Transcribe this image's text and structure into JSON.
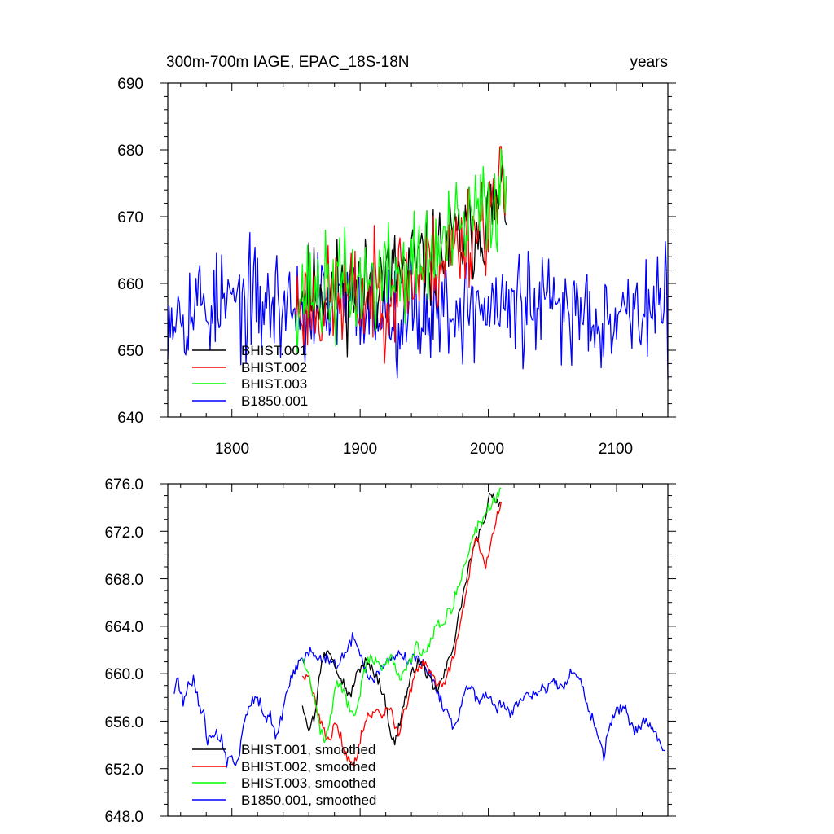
{
  "chart_data": [
    {
      "type": "line",
      "title": "300m-700m IAGE, EPAC_18S-18N",
      "right_title": "years",
      "xlim": [
        1750,
        2140
      ],
      "ylim": [
        640,
        690
      ],
      "xticks": [
        1800,
        1900,
        2000,
        2100
      ],
      "xtick_labels": [
        "1800",
        "1900",
        "2000",
        "2100"
      ],
      "yticks": [
        640,
        650,
        660,
        670,
        680,
        690
      ],
      "ytick_labels": [
        "640",
        "650",
        "660",
        "670",
        "680",
        "690"
      ],
      "legend_position": "bottom-left",
      "series": [
        {
          "name": "BHIST.001",
          "color": "#000000",
          "x_start": 1850,
          "x_end": 2014,
          "mean_start": 659,
          "mean_end": 673,
          "amp": 4.5,
          "seed": 11
        },
        {
          "name": "BHIST.002",
          "color": "#ff0000",
          "x_start": 1850,
          "x_end": 2014,
          "mean_start": 657,
          "mean_end": 674,
          "amp": 5.0,
          "seed": 23
        },
        {
          "name": "BHIST.003",
          "color": "#00ff00",
          "x_start": 1850,
          "x_end": 2014,
          "mean_start": 659,
          "mean_end": 675,
          "amp": 5.0,
          "seed": 37
        },
        {
          "name": "B1850.001",
          "color": "#0000ff",
          "x_start": 1750,
          "x_end": 2140,
          "mean_start": 657,
          "mean_end": 656,
          "amp": 5.0,
          "seed": 53
        }
      ]
    },
    {
      "type": "line",
      "title": "",
      "xlim": [
        1750,
        2140
      ],
      "ylim": [
        648,
        676
      ],
      "xticks": [
        1800,
        1900,
        2000,
        2100
      ],
      "yticks": [
        648,
        652,
        656,
        660,
        664,
        668,
        672,
        676
      ],
      "ytick_labels": [
        "648.0",
        "652.0",
        "656.0",
        "660.0",
        "664.0",
        "668.0",
        "672.0",
        "676.0"
      ],
      "legend_position": "bottom-left",
      "series": [
        {
          "name": "BHIST.001, smoothed",
          "color": "#000000",
          "points": [
            [
              1855,
              657.5
            ],
            [
              1860,
              655.5
            ],
            [
              1865,
              656.5
            ],
            [
              1868,
              660.0
            ],
            [
              1872,
              661.5
            ],
            [
              1876,
              662.0
            ],
            [
              1880,
              661.0
            ],
            [
              1884,
              660.0
            ],
            [
              1888,
              659.0
            ],
            [
              1892,
              658.0
            ],
            [
              1896,
              659.5
            ],
            [
              1900,
              660.5
            ],
            [
              1904,
              661.0
            ],
            [
              1908,
              660.5
            ],
            [
              1912,
              660.0
            ],
            [
              1916,
              659.0
            ],
            [
              1920,
              657.5
            ],
            [
              1924,
              655.0
            ],
            [
              1927,
              654.0
            ],
            [
              1930,
              655.5
            ],
            [
              1934,
              657.5
            ],
            [
              1938,
              659.0
            ],
            [
              1942,
              660.5
            ],
            [
              1946,
              661.0
            ],
            [
              1950,
              660.5
            ],
            [
              1954,
              659.5
            ],
            [
              1958,
              658.5
            ],
            [
              1962,
              659.0
            ],
            [
              1966,
              660.0
            ],
            [
              1970,
              661.5
            ],
            [
              1974,
              663.0
            ],
            [
              1978,
              665.5
            ],
            [
              1982,
              667.5
            ],
            [
              1986,
              669.5
            ],
            [
              1990,
              671.0
            ],
            [
              1994,
              672.0
            ],
            [
              1998,
              673.5
            ],
            [
              2002,
              675.5
            ],
            [
              2006,
              674.5
            ],
            [
              2009,
              674.5
            ]
          ]
        },
        {
          "name": "BHIST.002, smoothed",
          "color": "#ff0000",
          "points": [
            [
              1855,
              660.0
            ],
            [
              1860,
              659.5
            ],
            [
              1864,
              658.0
            ],
            [
              1868,
              656.5
            ],
            [
              1872,
              655.0
            ],
            [
              1876,
              654.5
            ],
            [
              1880,
              655.5
            ],
            [
              1884,
              655.0
            ],
            [
              1888,
              653.5
            ],
            [
              1892,
              652.5
            ],
            [
              1895,
              652.0
            ],
            [
              1898,
              653.5
            ],
            [
              1902,
              655.5
            ],
            [
              1906,
              656.5
            ],
            [
              1910,
              656.5
            ],
            [
              1914,
              657.0
            ],
            [
              1918,
              656.5
            ],
            [
              1922,
              657.5
            ],
            [
              1926,
              656.0
            ],
            [
              1930,
              655.0
            ],
            [
              1934,
              656.5
            ],
            [
              1938,
              658.0
            ],
            [
              1942,
              659.5
            ],
            [
              1946,
              660.5
            ],
            [
              1950,
              661.0
            ],
            [
              1954,
              660.0
            ],
            [
              1958,
              659.5
            ],
            [
              1962,
              659.0
            ],
            [
              1966,
              659.5
            ],
            [
              1970,
              660.5
            ],
            [
              1974,
              662.0
            ],
            [
              1978,
              664.0
            ],
            [
              1982,
              666.5
            ],
            [
              1986,
              669.0
            ],
            [
              1990,
              671.5
            ],
            [
              1994,
              670.5
            ],
            [
              1998,
              669.0
            ],
            [
              2002,
              671.0
            ],
            [
              2006,
              673.0
            ],
            [
              2010,
              674.5
            ]
          ]
        },
        {
          "name": "BHIST.003, smoothed",
          "color": "#00ff00",
          "points": [
            [
              1855,
              661.5
            ],
            [
              1860,
              660.0
            ],
            [
              1864,
              658.0
            ],
            [
              1868,
              655.5
            ],
            [
              1872,
              654.5
            ],
            [
              1876,
              655.5
            ],
            [
              1880,
              658.5
            ],
            [
              1884,
              659.5
            ],
            [
              1888,
              658.0
            ],
            [
              1892,
              657.0
            ],
            [
              1896,
              656.5
            ],
            [
              1900,
              658.5
            ],
            [
              1904,
              660.5
            ],
            [
              1908,
              661.5
            ],
            [
              1912,
              661.0
            ],
            [
              1916,
              660.5
            ],
            [
              1920,
              661.0
            ],
            [
              1924,
              661.5
            ],
            [
              1928,
              660.5
            ],
            [
              1932,
              659.5
            ],
            [
              1936,
              660.5
            ],
            [
              1940,
              661.0
            ],
            [
              1944,
              662.5
            ],
            [
              1948,
              661.5
            ],
            [
              1952,
              662.0
            ],
            [
              1956,
              663.0
            ],
            [
              1960,
              664.5
            ],
            [
              1964,
              664.0
            ],
            [
              1968,
              665.0
            ],
            [
              1972,
              665.5
            ],
            [
              1976,
              667.5
            ],
            [
              1980,
              668.5
            ],
            [
              1984,
              670.0
            ],
            [
              1988,
              671.5
            ],
            [
              1992,
              672.5
            ],
            [
              1996,
              673.0
            ],
            [
              2000,
              674.0
            ],
            [
              2004,
              674.5
            ],
            [
              2008,
              675.0
            ],
            [
              2010,
              675.6
            ]
          ]
        },
        {
          "name": "B1850.001, smoothed",
          "color": "#0000ff",
          "points": [
            [
              1755,
              658.5
            ],
            [
              1758,
              659.5
            ],
            [
              1762,
              657.5
            ],
            [
              1766,
              659.0
            ],
            [
              1770,
              659.5
            ],
            [
              1774,
              657.5
            ],
            [
              1778,
              656.5
            ],
            [
              1781,
              654.0
            ],
            [
              1784,
              655.0
            ],
            [
              1788,
              655.0
            ],
            [
              1792,
              654.5
            ],
            [
              1796,
              652.5
            ],
            [
              1800,
              653.5
            ],
            [
              1803,
              652.0
            ],
            [
              1806,
              653.5
            ],
            [
              1810,
              656.0
            ],
            [
              1814,
              657.5
            ],
            [
              1818,
              658.0
            ],
            [
              1822,
              657.5
            ],
            [
              1826,
              656.0
            ],
            [
              1830,
              656.5
            ],
            [
              1834,
              654.5
            ],
            [
              1838,
              656.0
            ],
            [
              1842,
              658.0
            ],
            [
              1846,
              659.5
            ],
            [
              1850,
              660.5
            ],
            [
              1854,
              661.0
            ],
            [
              1858,
              661.5
            ],
            [
              1862,
              662.0
            ],
            [
              1866,
              661.5
            ],
            [
              1870,
              661.0
            ],
            [
              1874,
              661.5
            ],
            [
              1878,
              661.0
            ],
            [
              1882,
              660.5
            ],
            [
              1886,
              661.5
            ],
            [
              1890,
              662.0
            ],
            [
              1894,
              663.0
            ],
            [
              1898,
              662.0
            ],
            [
              1902,
              661.0
            ],
            [
              1906,
              660.0
            ],
            [
              1910,
              659.5
            ],
            [
              1914,
              660.0
            ],
            [
              1918,
              660.5
            ],
            [
              1922,
              661.0
            ],
            [
              1926,
              661.5
            ],
            [
              1930,
              662.0
            ],
            [
              1934,
              661.5
            ],
            [
              1938,
              661.0
            ],
            [
              1942,
              661.5
            ],
            [
              1946,
              661.0
            ],
            [
              1950,
              661.0
            ],
            [
              1954,
              660.0
            ],
            [
              1958,
              659.0
            ],
            [
              1962,
              658.0
            ],
            [
              1966,
              657.0
            ],
            [
              1970,
              656.0
            ],
            [
              1974,
              655.5
            ],
            [
              1978,
              657.0
            ],
            [
              1982,
              658.5
            ],
            [
              1986,
              659.0
            ],
            [
              1990,
              658.0
            ],
            [
              1994,
              657.5
            ],
            [
              1998,
              658.5
            ],
            [
              2002,
              658.0
            ],
            [
              2006,
              657.0
            ],
            [
              2010,
              657.5
            ],
            [
              2014,
              657.0
            ],
            [
              2018,
              656.5
            ],
            [
              2022,
              657.5
            ],
            [
              2026,
              658.0
            ],
            [
              2030,
              658.5
            ],
            [
              2034,
              658.0
            ],
            [
              2038,
              658.5
            ],
            [
              2042,
              659.0
            ],
            [
              2046,
              658.5
            ],
            [
              2050,
              659.5
            ],
            [
              2054,
              659.0
            ],
            [
              2058,
              658.5
            ],
            [
              2062,
              659.5
            ],
            [
              2066,
              660.5
            ],
            [
              2070,
              660.0
            ],
            [
              2074,
              658.5
            ],
            [
              2078,
              657.0
            ],
            [
              2082,
              656.0
            ],
            [
              2086,
              654.5
            ],
            [
              2090,
              653.0
            ],
            [
              2094,
              655.5
            ],
            [
              2098,
              656.5
            ],
            [
              2102,
              657.0
            ],
            [
              2106,
              657.5
            ],
            [
              2110,
              656.0
            ],
            [
              2114,
              655.0
            ],
            [
              2118,
              655.5
            ],
            [
              2122,
              656.0
            ],
            [
              2126,
              655.5
            ],
            [
              2130,
              655.0
            ],
            [
              2134,
              654.0
            ],
            [
              2138,
              653.5
            ]
          ]
        }
      ]
    }
  ]
}
